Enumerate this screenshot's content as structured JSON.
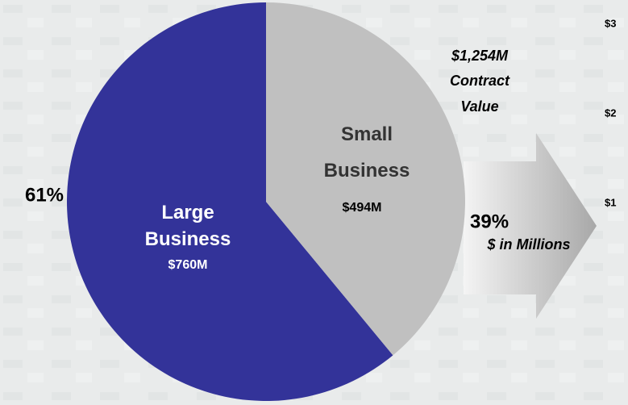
{
  "chart_data": {
    "type": "pie",
    "categories": [
      "Large Business",
      "Small Business"
    ],
    "values": [
      61,
      39
    ],
    "value_labels": [
      "61%",
      "39%"
    ],
    "amounts": [
      760,
      494
    ],
    "amount_labels": [
      "$760M",
      "$494M"
    ],
    "colors": [
      "#333399",
      "#c0c0c0"
    ],
    "total_label": "$1,254M",
    "total_caption": "Contract Value",
    "unit_note": "$ in Millions",
    "clipped_labels": [
      "$3",
      "$2",
      "$1"
    ]
  }
}
